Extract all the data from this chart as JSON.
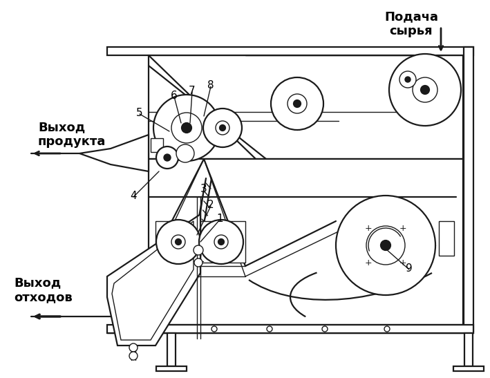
{
  "background_color": "#ffffff",
  "line_color": "#1a1a1a",
  "text_color": "#000000",
  "labels": {
    "podacha": "Подача\nсырья",
    "vykhod_produkta": "Выход\nпродукта",
    "vykhod_otkhodov": "Выход\nотходов"
  },
  "figsize": [
    7.09,
    5.47
  ],
  "dpi": 100
}
